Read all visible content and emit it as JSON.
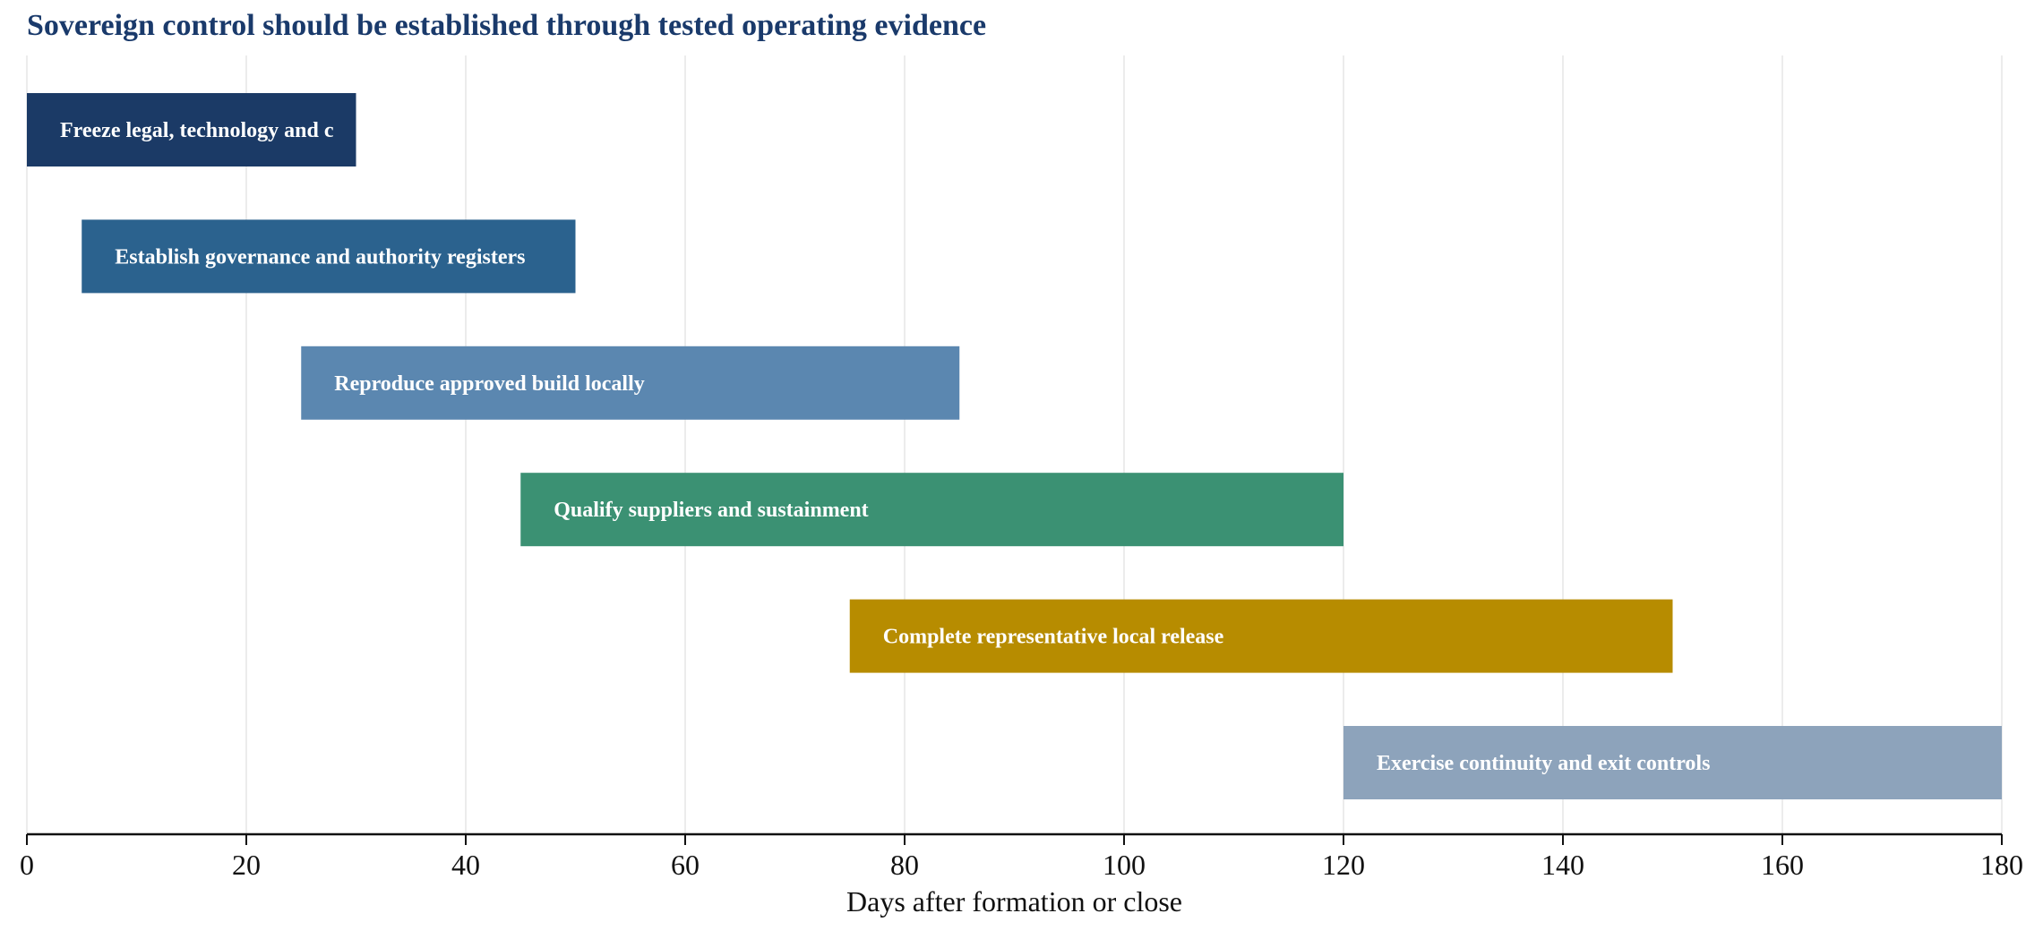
{
  "chart_data": {
    "type": "bar",
    "orientation": "horizontal",
    "title": "Sovereign control should be established through tested operating evidence",
    "xlabel": "Days after formation or close",
    "ylabel": "",
    "xlim": [
      0,
      180
    ],
    "xticks": [
      0,
      20,
      40,
      60,
      80,
      100,
      120,
      140,
      160,
      180
    ],
    "grid": "vertical",
    "tasks": [
      {
        "label": "Freeze legal, technology and control baseline",
        "visible_label": "Freeze legal, technology and c",
        "start": 0,
        "end": 30,
        "color": "#1b3a66"
      },
      {
        "label": "Establish governance and authority registers",
        "visible_label": "Establish governance and authority registers",
        "start": 5,
        "end": 50,
        "color": "#2b628e"
      },
      {
        "label": "Reproduce approved build locally",
        "visible_label": "Reproduce approved build locally",
        "start": 25,
        "end": 85,
        "color": "#5b87b0"
      },
      {
        "label": "Qualify suppliers and sustainment",
        "visible_label": "Qualify suppliers and sustainment",
        "start": 45,
        "end": 120,
        "color": "#3b9173"
      },
      {
        "label": "Complete representative local release",
        "visible_label": "Complete representative local release",
        "start": 75,
        "end": 150,
        "color": "#b78c00"
      },
      {
        "label": "Exercise continuity and exit controls",
        "visible_label": "Exercise continuity and exit controls",
        "start": 120,
        "end": 180,
        "color": "#8da3bb"
      }
    ]
  }
}
